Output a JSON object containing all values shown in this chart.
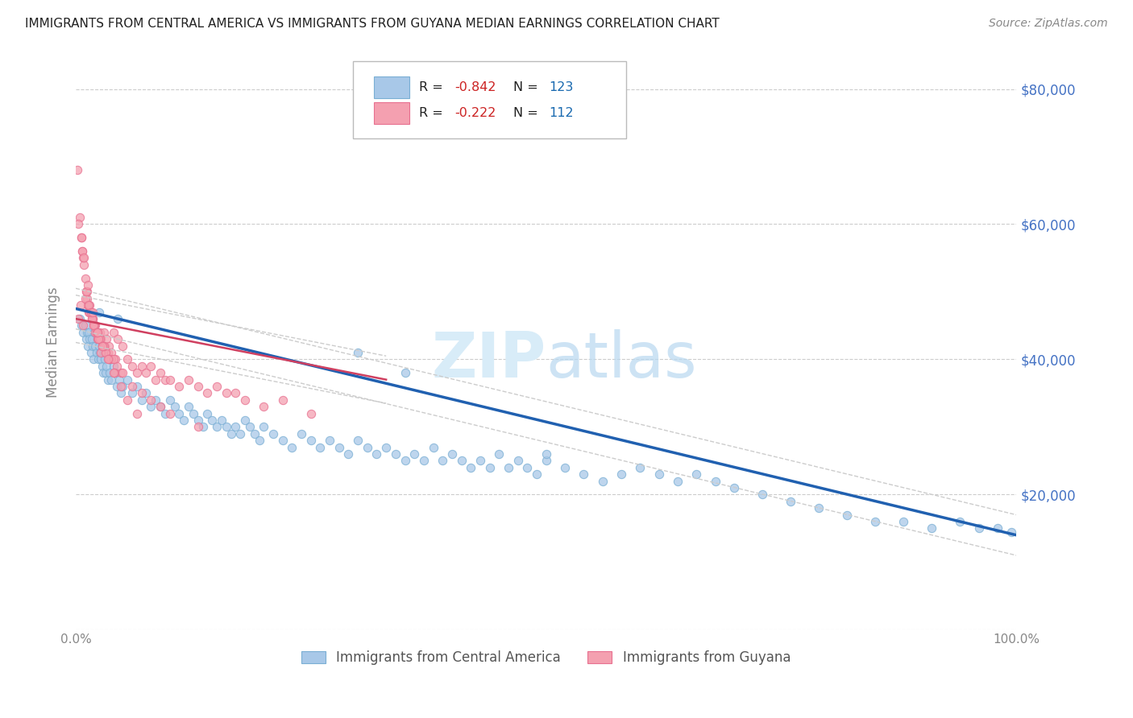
{
  "title": "IMMIGRANTS FROM CENTRAL AMERICA VS IMMIGRANTS FROM GUYANA MEDIAN EARNINGS CORRELATION CHART",
  "source": "Source: ZipAtlas.com",
  "ylabel": "Median Earnings",
  "xlim": [
    0,
    1
  ],
  "ylim": [
    0,
    85000
  ],
  "yticks": [
    0,
    20000,
    40000,
    60000,
    80000
  ],
  "ytick_labels": [
    "",
    "$20,000",
    "$40,000",
    "$60,000",
    "$80,000"
  ],
  "blue_R": -0.842,
  "blue_N": 123,
  "pink_R": -0.222,
  "pink_N": 112,
  "blue_color": "#a8c8e8",
  "pink_color": "#f4a0b0",
  "blue_edge_color": "#7aafd4",
  "pink_edge_color": "#e87090",
  "blue_line_color": "#2060b0",
  "pink_line_color": "#d04060",
  "ci_line_color": "#cccccc",
  "watermark_color": "#d8ecf8",
  "background_color": "#ffffff",
  "grid_color": "#cccccc",
  "title_color": "#222222",
  "right_tick_color": "#4472c4",
  "legend_label_blue": "Immigrants from Central America",
  "legend_label_pink": "Immigrants from Guyana",
  "blue_line_y0": 47500,
  "blue_line_y1": 14000,
  "pink_line_y0": 46000,
  "pink_line_y1": 37000,
  "blue_scatter_x": [
    0.004,
    0.006,
    0.008,
    0.01,
    0.011,
    0.012,
    0.013,
    0.014,
    0.015,
    0.016,
    0.017,
    0.018,
    0.019,
    0.02,
    0.021,
    0.022,
    0.023,
    0.024,
    0.025,
    0.026,
    0.027,
    0.028,
    0.029,
    0.03,
    0.031,
    0.032,
    0.033,
    0.034,
    0.035,
    0.036,
    0.038,
    0.04,
    0.042,
    0.044,
    0.046,
    0.048,
    0.05,
    0.055,
    0.06,
    0.065,
    0.07,
    0.075,
    0.08,
    0.085,
    0.09,
    0.095,
    0.1,
    0.105,
    0.11,
    0.115,
    0.12,
    0.125,
    0.13,
    0.135,
    0.14,
    0.145,
    0.15,
    0.155,
    0.16,
    0.165,
    0.17,
    0.175,
    0.18,
    0.185,
    0.19,
    0.195,
    0.2,
    0.21,
    0.22,
    0.23,
    0.24,
    0.25,
    0.26,
    0.27,
    0.28,
    0.29,
    0.3,
    0.31,
    0.32,
    0.33,
    0.34,
    0.35,
    0.36,
    0.37,
    0.38,
    0.39,
    0.4,
    0.41,
    0.42,
    0.43,
    0.44,
    0.45,
    0.46,
    0.47,
    0.48,
    0.49,
    0.5,
    0.52,
    0.54,
    0.56,
    0.58,
    0.6,
    0.62,
    0.64,
    0.66,
    0.68,
    0.7,
    0.73,
    0.76,
    0.79,
    0.82,
    0.85,
    0.88,
    0.91,
    0.94,
    0.96,
    0.98,
    0.995,
    0.025,
    0.045,
    0.3,
    0.35,
    0.5
  ],
  "blue_scatter_y": [
    46000,
    45000,
    44000,
    45000,
    43000,
    44000,
    42000,
    44000,
    43000,
    41000,
    43000,
    42000,
    40000,
    44000,
    42000,
    41000,
    43000,
    40000,
    42000,
    41000,
    40000,
    39000,
    38000,
    41000,
    40000,
    38000,
    39000,
    37000,
    40000,
    38000,
    37000,
    39000,
    38000,
    36000,
    37000,
    35000,
    36000,
    37000,
    35000,
    36000,
    34000,
    35000,
    33000,
    34000,
    33000,
    32000,
    34000,
    33000,
    32000,
    31000,
    33000,
    32000,
    31000,
    30000,
    32000,
    31000,
    30000,
    31000,
    30000,
    29000,
    30000,
    29000,
    31000,
    30000,
    29000,
    28000,
    30000,
    29000,
    28000,
    27000,
    29000,
    28000,
    27000,
    28000,
    27000,
    26000,
    28000,
    27000,
    26000,
    27000,
    26000,
    25000,
    26000,
    25000,
    27000,
    25000,
    26000,
    25000,
    24000,
    25000,
    24000,
    26000,
    24000,
    25000,
    24000,
    23000,
    25000,
    24000,
    23000,
    22000,
    23000,
    24000,
    23000,
    22000,
    23000,
    22000,
    21000,
    20000,
    19000,
    18000,
    17000,
    16000,
    16000,
    15000,
    16000,
    15000,
    15000,
    14500,
    47000,
    46000,
    41000,
    38000,
    26000
  ],
  "pink_scatter_x": [
    0.002,
    0.004,
    0.006,
    0.007,
    0.008,
    0.009,
    0.01,
    0.011,
    0.012,
    0.013,
    0.014,
    0.015,
    0.016,
    0.017,
    0.018,
    0.019,
    0.02,
    0.021,
    0.022,
    0.023,
    0.024,
    0.025,
    0.026,
    0.027,
    0.028,
    0.029,
    0.03,
    0.031,
    0.032,
    0.033,
    0.034,
    0.035,
    0.036,
    0.038,
    0.04,
    0.042,
    0.045,
    0.048,
    0.05,
    0.055,
    0.06,
    0.065,
    0.07,
    0.075,
    0.08,
    0.085,
    0.09,
    0.095,
    0.1,
    0.11,
    0.12,
    0.13,
    0.14,
    0.15,
    0.16,
    0.17,
    0.18,
    0.2,
    0.22,
    0.25,
    0.013,
    0.016,
    0.02,
    0.022,
    0.025,
    0.028,
    0.015,
    0.018,
    0.023,
    0.027,
    0.003,
    0.005,
    0.008,
    0.012,
    0.017,
    0.021,
    0.026,
    0.032,
    0.038,
    0.044,
    0.01,
    0.014,
    0.019,
    0.024,
    0.029,
    0.035,
    0.041,
    0.007,
    0.011,
    0.016,
    0.022,
    0.03,
    0.04,
    0.05,
    0.06,
    0.07,
    0.08,
    0.09,
    0.1,
    0.13,
    0.003,
    0.006,
    0.009,
    0.013,
    0.018,
    0.023,
    0.028,
    0.034,
    0.04,
    0.048,
    0.055,
    0.065
  ],
  "pink_scatter_y": [
    68000,
    61000,
    58000,
    56000,
    55000,
    54000,
    52000,
    50000,
    49000,
    48000,
    47000,
    48000,
    47000,
    46000,
    46000,
    45000,
    45000,
    45000,
    44000,
    44000,
    43000,
    43000,
    44000,
    43000,
    42000,
    42000,
    44000,
    42000,
    41000,
    43000,
    41000,
    42000,
    40000,
    41000,
    44000,
    40000,
    43000,
    38000,
    42000,
    40000,
    39000,
    38000,
    39000,
    38000,
    39000,
    37000,
    38000,
    37000,
    37000,
    36000,
    37000,
    36000,
    35000,
    36000,
    35000,
    35000,
    34000,
    33000,
    34000,
    32000,
    48000,
    47000,
    45000,
    44000,
    43000,
    42000,
    47000,
    46000,
    43000,
    41000,
    46000,
    48000,
    45000,
    50000,
    46000,
    44000,
    43000,
    41000,
    40000,
    39000,
    49000,
    48000,
    45000,
    43000,
    42000,
    40000,
    38000,
    56000,
    50000,
    47000,
    44000,
    42000,
    40000,
    38000,
    36000,
    35000,
    34000,
    33000,
    32000,
    30000,
    60000,
    58000,
    55000,
    51000,
    47000,
    44000,
    42000,
    40000,
    38000,
    36000,
    34000,
    32000
  ]
}
